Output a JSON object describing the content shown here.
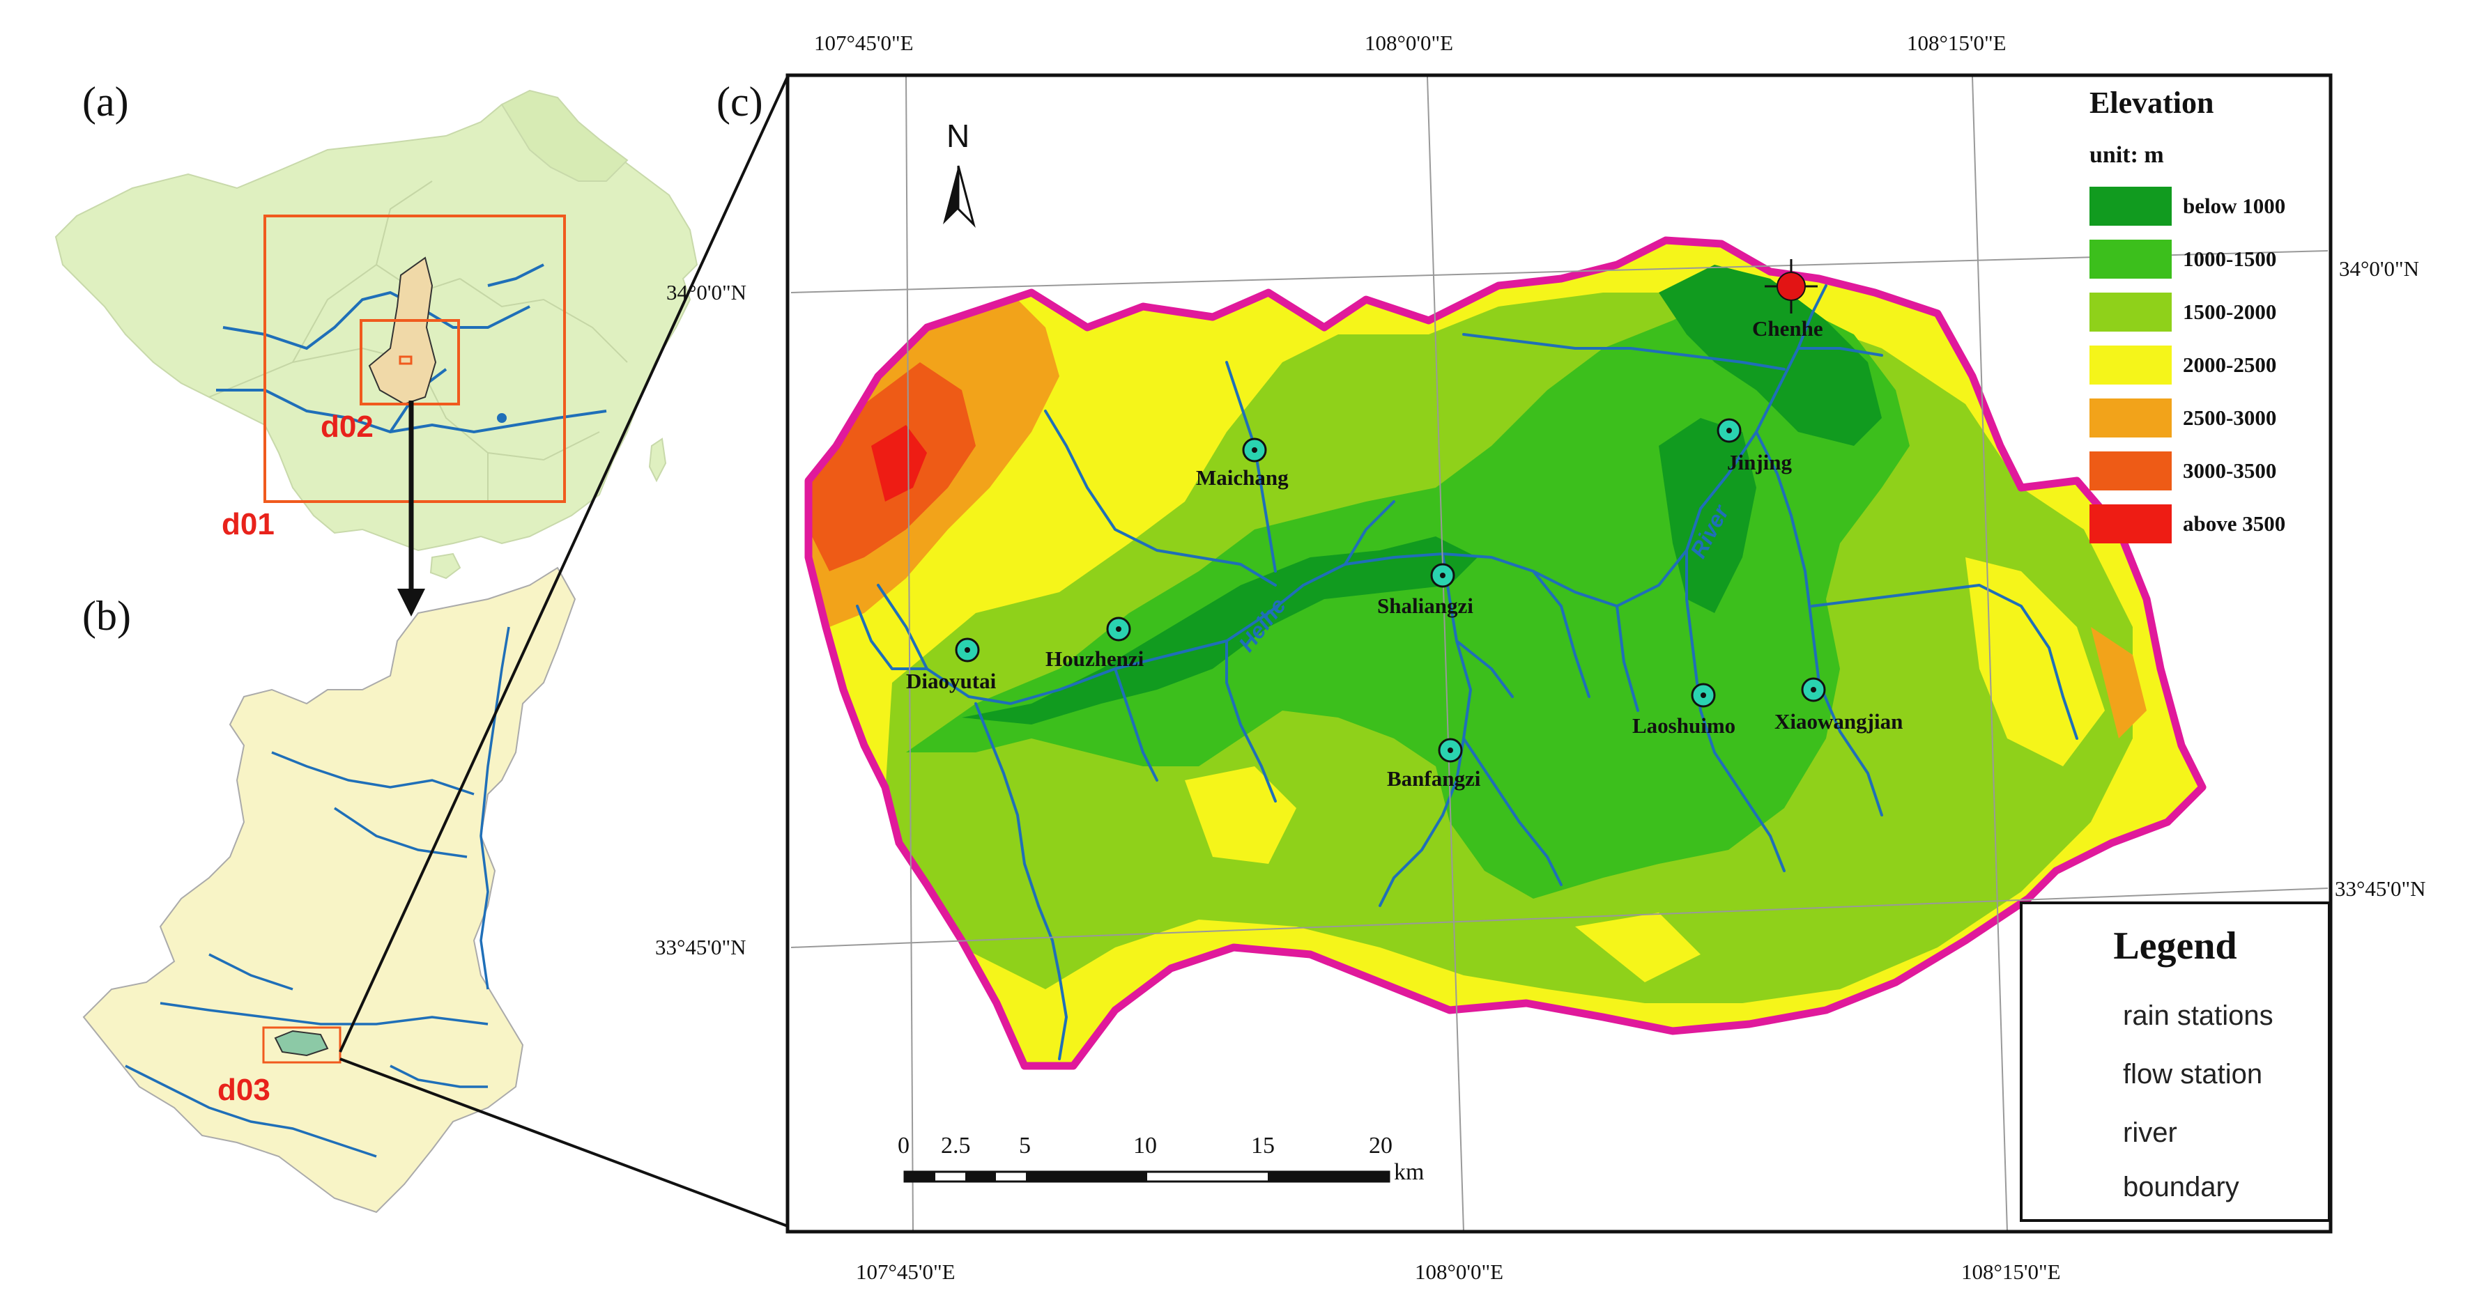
{
  "panels": {
    "a": "(a)",
    "b": "(b)",
    "c": "(c)"
  },
  "domains": {
    "d01": "d01",
    "d02": "d02",
    "d03": "d03"
  },
  "coords": {
    "top": [
      "107°45'0\"E",
      "108°0'0\"E",
      "108°15'0\"E"
    ],
    "bottom": [
      "107°45'0\"E",
      "108°0'0\"E",
      "108°15'0\"E"
    ],
    "left": [
      "34°0'0\"N",
      "33°45'0\"N"
    ],
    "right": [
      "34°0'0\"N",
      "33°45'0\"N"
    ]
  },
  "north_arrow": "N",
  "stations": [
    {
      "name": "Maichang"
    },
    {
      "name": "Jinjing"
    },
    {
      "name": "Shaliangzi"
    },
    {
      "name": "Houzhenzi"
    },
    {
      "name": "Diaoyutai"
    },
    {
      "name": "Laoshuimo"
    },
    {
      "name": "Xiaowangjian"
    },
    {
      "name": "Banfangzi"
    }
  ],
  "flow_station": {
    "name": "Chenhe"
  },
  "rivers": {
    "helhe": "Heihe",
    "river": "River"
  },
  "elevation": {
    "title": "Elevation",
    "unit": "unit: m",
    "classes": [
      {
        "label": "below 1000",
        "color": "#119b1f"
      },
      {
        "label": "1000-1500",
        "color": "#3cbf1c"
      },
      {
        "label": "1500-2000",
        "color": "#8fd11a"
      },
      {
        "label": "2000-2500",
        "color": "#f5f51a"
      },
      {
        "label": "2500-3000",
        "color": "#f2a31a"
      },
      {
        "label": "3000-3500",
        "color": "#ee5b16"
      },
      {
        "label": "above 3500",
        "color": "#ee1c14"
      }
    ]
  },
  "legend": {
    "title": "Legend",
    "items": [
      "rain stations",
      "flow station",
      "river",
      "boundary"
    ]
  },
  "scale": {
    "ticks": [
      "0",
      "2.5",
      "5",
      "10",
      "15",
      "20"
    ],
    "unit": "km"
  },
  "colors": {
    "china_fill": "#dff0c0",
    "shaanxi_fill": "#f8f4c6",
    "boundary": "#e0199b",
    "river": "#1f6fb8",
    "domain_box": "#f05a1e",
    "station": "#2ad3b0",
    "flow_station": "#e21414"
  }
}
